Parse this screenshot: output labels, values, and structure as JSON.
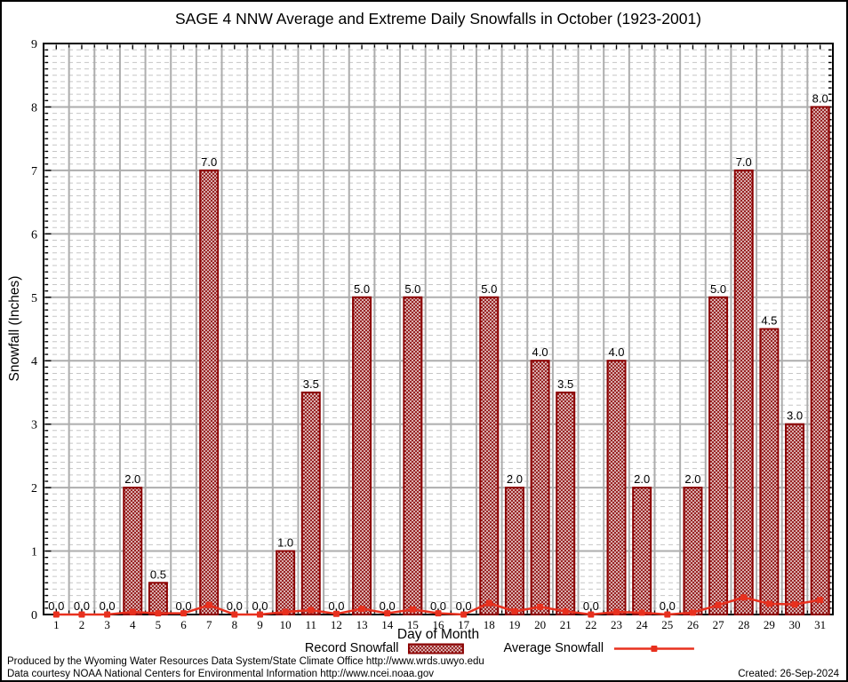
{
  "chart_data": {
    "type": "bar",
    "title": "SAGE 4 NNW Average and Extreme Daily Snowfalls in October (1923-2001)",
    "categories": [
      1,
      2,
      3,
      4,
      5,
      6,
      7,
      8,
      9,
      10,
      11,
      12,
      13,
      14,
      15,
      16,
      17,
      18,
      19,
      20,
      21,
      22,
      23,
      24,
      25,
      26,
      27,
      28,
      29,
      30,
      31
    ],
    "series": [
      {
        "name": "Record Snowfall",
        "type": "bar",
        "values": [
          0.0,
          0.0,
          0.0,
          2.0,
          0.5,
          0.0,
          7.0,
          0.0,
          0.0,
          1.0,
          3.5,
          0.0,
          5.0,
          0.0,
          5.0,
          0.0,
          0.0,
          5.0,
          2.0,
          4.0,
          3.5,
          0.0,
          4.0,
          2.0,
          0.0,
          2.0,
          5.0,
          7.0,
          4.5,
          3.0,
          8.0
        ]
      },
      {
        "name": "Average Snowfall",
        "type": "line",
        "values": [
          0.0,
          0.0,
          0.0,
          0.04,
          0.02,
          0.02,
          0.15,
          0.0,
          0.0,
          0.04,
          0.07,
          0.01,
          0.09,
          0.02,
          0.08,
          0.02,
          0.0,
          0.18,
          0.05,
          0.12,
          0.05,
          0.0,
          0.04,
          0.03,
          0.0,
          0.03,
          0.15,
          0.27,
          0.17,
          0.16,
          0.23
        ]
      }
    ],
    "xlabel": "Day of Month",
    "ylabel": "Snowfall (Inches)",
    "ylim": [
      0,
      9
    ],
    "ytick_major": 1,
    "ytick_minor": 0.1,
    "grid": true,
    "bar_value_labels": true,
    "legend_position": "bottom"
  },
  "colors": {
    "bar_fill": "#962020",
    "bar_border": "#8B0000",
    "line": "#E8301E",
    "grid_major": "#ADADAD",
    "grid_minor": "#C6C6C6",
    "axis": "#000000"
  },
  "footer": {
    "line1": "Produced by the Wyoming Water Resources Data System/State Climate Office http://www.wrds.uwyo.edu",
    "line2": "Data courtesy NOAA National Centers for Environmental Information http://www.ncei.noaa.gov",
    "created": "Created: 26-Sep-2024"
  }
}
